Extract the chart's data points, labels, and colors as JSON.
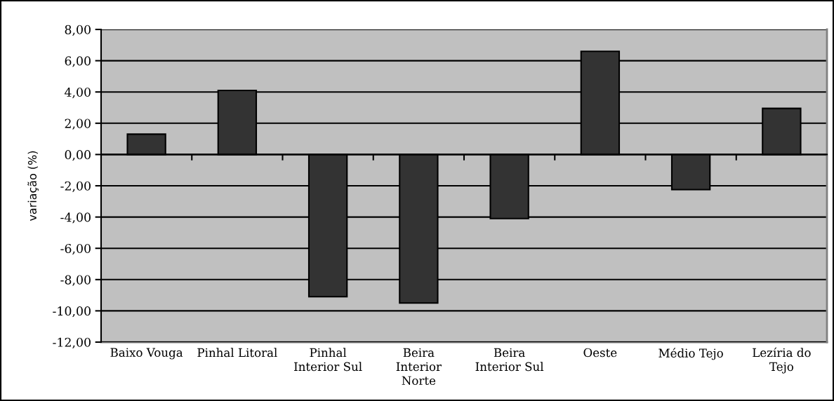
{
  "chart_data": {
    "type": "bar",
    "ylabel": "variação (%)",
    "categories": [
      "Baixo Vouga",
      "Pinhal Litoral",
      "Pinhal\nInterior Sul",
      "Beira\nInterior\nNorte",
      "Beira\nInterior Sul",
      "Oeste",
      "Médio Tejo",
      "Lezíria do\nTejo"
    ],
    "values": [
      1.3,
      4.1,
      -9.1,
      -9.5,
      -4.1,
      6.6,
      -2.25,
      2.95
    ],
    "color": "#333333",
    "ylim": [
      -12,
      8
    ],
    "yticks": [
      {
        "value": -12,
        "label": "-12,00"
      },
      {
        "value": -10,
        "label": "-10,00"
      },
      {
        "value": -8,
        "label": "-8,00"
      },
      {
        "value": -6,
        "label": "-6,00"
      },
      {
        "value": -4,
        "label": "-4,00"
      },
      {
        "value": -2,
        "label": "-2,00"
      },
      {
        "value": 0,
        "label": "0,00"
      },
      {
        "value": 2,
        "label": "2,00"
      },
      {
        "value": 4,
        "label": "4,00"
      },
      {
        "value": 6,
        "label": "6,00"
      },
      {
        "value": 8,
        "label": "8,00"
      }
    ],
    "grid": "y"
  }
}
